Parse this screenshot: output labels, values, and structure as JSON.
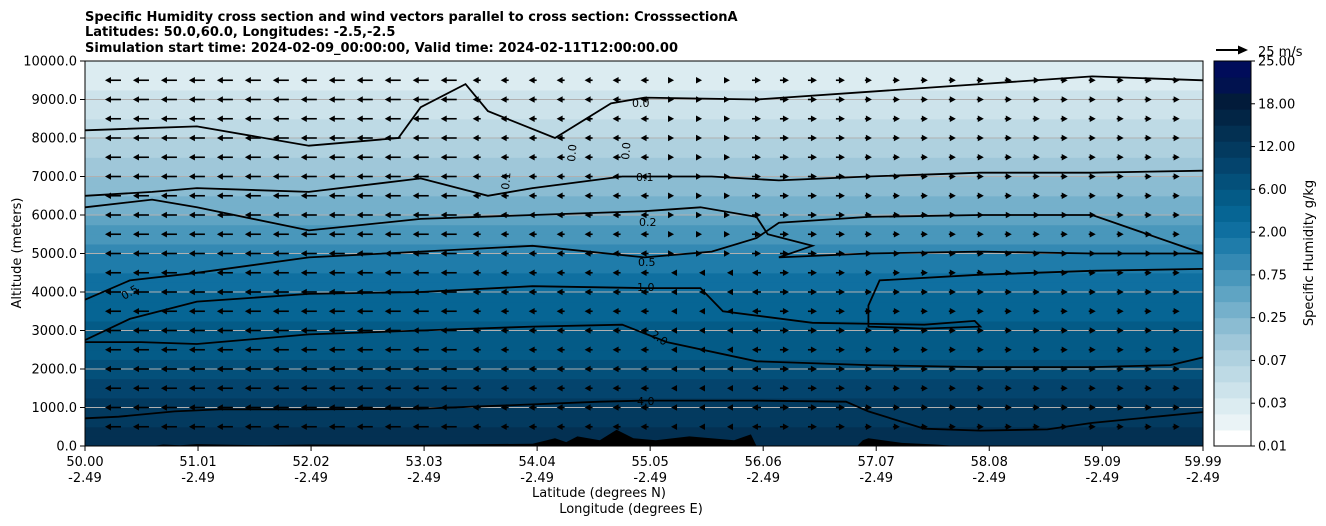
{
  "chart_data": {
    "type": "contourf",
    "title_lines": [
      "Specific Humidity cross section and wind vectors parallel to cross section: CrosssectionA",
      "Latitudes: 50.0,60.0, Longitudes: -2.5,-2.5",
      "Simulation start time: 2024-02-09_00:00:00, Valid time: 2024-02-11T12:00:00.00"
    ],
    "ylabel": "Altitude (meters)",
    "xlabel_lat": "Latitude (degrees N)",
    "xlabel_lon": "Longitude (degrees E)",
    "ylim": [
      0,
      10000
    ],
    "yticks": [
      "0.0",
      "1000.0",
      "2000.0",
      "3000.0",
      "4000.0",
      "5000.0",
      "6000.0",
      "7000.0",
      "8000.0",
      "9000.0",
      "10000.0"
    ],
    "xticks_lat": [
      "50.00",
      "51.01",
      "52.02",
      "53.03",
      "54.04",
      "55.05",
      "56.06",
      "57.07",
      "58.08",
      "59.09",
      "59.99"
    ],
    "xticks_lon": [
      "-2.49",
      "-2.49",
      "-2.49",
      "-2.49",
      "-2.49",
      "-2.49",
      "-2.49",
      "-2.49",
      "-2.49",
      "-2.49",
      "-2.49"
    ],
    "colorbar_label": "Specific Humidity g/kg",
    "colorbar_ticks": [
      "0.01",
      "0.03",
      "0.07",
      "0.25",
      "0.75",
      "2.00",
      "6.00",
      "12.00",
      "18.00",
      "25.00"
    ],
    "colorbar_colors": [
      "#ffffff",
      "#eaf3f6",
      "#dcecf1",
      "#cde3eb",
      "#bedae5",
      "#afd1df",
      "#9fc7d9",
      "#8bbcd2",
      "#75b0cb",
      "#5fa4c3",
      "#4997bb",
      "#3489b3",
      "#1f7caa",
      "#0f6fa0",
      "#066594",
      "#045b87",
      "#04507a",
      "#04446d",
      "#033a5f",
      "#033052",
      "#022545",
      "#021b3a",
      "#01124f",
      "#010c5a"
    ],
    "humidity_by_altitude": [
      {
        "alt": 0,
        "value": 6.0
      },
      {
        "alt": 1000,
        "value": 4.0
      },
      {
        "alt": 2000,
        "value": 2.0
      },
      {
        "alt": 3000,
        "value": 1.5
      },
      {
        "alt": 4000,
        "value": 1.0
      },
      {
        "alt": 5000,
        "value": 0.5
      },
      {
        "alt": 6000,
        "value": 0.2
      },
      {
        "alt": 7000,
        "value": 0.1
      },
      {
        "alt": 8000,
        "value": 0.05
      },
      {
        "alt": 9000,
        "value": 0.03
      },
      {
        "alt": 10000,
        "value": 0.02
      }
    ],
    "contour_labels": [
      "0.0",
      "0.0",
      "0.0",
      "0.1",
      "0.2",
      "0.5",
      "1.0",
      "2.0",
      "4.0",
      "0.5",
      "0.1"
    ],
    "contours": [
      {
        "level": "4.0",
        "points": [
          [
            0,
            720
          ],
          [
            0.3,
            760
          ],
          [
            0.8,
            900
          ],
          [
            1.2,
            950
          ],
          [
            2,
            950
          ],
          [
            3,
            970
          ],
          [
            4,
            1080
          ],
          [
            4.6,
            1150
          ],
          [
            5,
            1180
          ],
          [
            6,
            1180
          ],
          [
            6.8,
            1150
          ],
          [
            7,
            900
          ],
          [
            7.5,
            450
          ],
          [
            8,
            400
          ],
          [
            8.6,
            430
          ],
          [
            9,
            600
          ],
          [
            9.99,
            880
          ]
        ]
      },
      {
        "level": "2.0",
        "points": [
          [
            0,
            2700
          ],
          [
            0.5,
            2700
          ],
          [
            1,
            2650
          ],
          [
            2,
            2900
          ],
          [
            3,
            3000
          ],
          [
            4,
            3100
          ],
          [
            4.8,
            3150
          ],
          [
            5.2,
            2700
          ],
          [
            6,
            2200
          ],
          [
            7,
            2100
          ],
          [
            8,
            2050
          ],
          [
            9,
            2050
          ],
          [
            9.7,
            2100
          ],
          [
            9.99,
            2300
          ]
        ]
      },
      {
        "level": "1.0",
        "points": [
          [
            0,
            2750
          ],
          [
            0.4,
            3300
          ],
          [
            1,
            3750
          ],
          [
            2,
            3950
          ],
          [
            3,
            4000
          ],
          [
            4,
            4150
          ],
          [
            5,
            4100
          ],
          [
            5.5,
            4100
          ],
          [
            5.7,
            3500
          ],
          [
            6.5,
            3200
          ],
          [
            7.5,
            3150
          ],
          [
            7.95,
            3250
          ],
          [
            8,
            3100
          ],
          [
            7.5,
            3050
          ],
          [
            7,
            3100
          ],
          [
            7,
            3650
          ],
          [
            7.1,
            4300
          ],
          [
            8,
            4450
          ],
          [
            9,
            4550
          ],
          [
            9.99,
            4600
          ]
        ]
      },
      {
        "level": "0.5",
        "points": [
          [
            0,
            3800
          ],
          [
            0.4,
            4300
          ],
          [
            1,
            4500
          ],
          [
            2,
            4900
          ],
          [
            3,
            5050
          ],
          [
            4,
            5200
          ],
          [
            5,
            4900
          ],
          [
            5.6,
            5050
          ],
          [
            6,
            5400
          ],
          [
            6.2,
            5800
          ],
          [
            7,
            5950
          ],
          [
            8,
            6000
          ],
          [
            9,
            6000
          ],
          [
            9.99,
            5000
          ]
        ]
      },
      {
        "level": "0.2",
        "points": [
          [
            0,
            6200
          ],
          [
            0.6,
            6400
          ],
          [
            1,
            6200
          ],
          [
            2,
            5600
          ],
          [
            3,
            5900
          ],
          [
            4,
            6000
          ],
          [
            5,
            6100
          ],
          [
            5.5,
            6200
          ],
          [
            6,
            5950
          ],
          [
            6.1,
            5500
          ],
          [
            6.5,
            5200
          ],
          [
            6.2,
            4900
          ],
          [
            7,
            5000
          ],
          [
            8,
            5050
          ],
          [
            9,
            5000
          ],
          [
            9.99,
            5000
          ]
        ]
      },
      {
        "level": "0.1",
        "points": [
          [
            0,
            6500
          ],
          [
            0.6,
            6600
          ],
          [
            1,
            6700
          ],
          [
            2,
            6600
          ],
          [
            3,
            6950
          ],
          [
            3.6,
            6500
          ],
          [
            4,
            6700
          ],
          [
            4.8,
            7000
          ],
          [
            5.6,
            7000
          ],
          [
            6.2,
            6900
          ],
          [
            7,
            7000
          ],
          [
            8,
            7100
          ],
          [
            9,
            7100
          ],
          [
            9.99,
            7150
          ]
        ]
      },
      {
        "level": "0.0",
        "points": [
          [
            0,
            8200
          ],
          [
            1,
            8300
          ],
          [
            2,
            7800
          ],
          [
            2.8,
            8000
          ],
          [
            3,
            8800
          ],
          [
            3.4,
            9400
          ],
          [
            3.6,
            8700
          ],
          [
            4.2,
            8000
          ],
          [
            4.7,
            8900
          ],
          [
            5,
            9050
          ],
          [
            6,
            9000
          ],
          [
            7,
            9200
          ],
          [
            8,
            9400
          ],
          [
            9,
            9600
          ],
          [
            9.99,
            9500
          ]
        ]
      }
    ]
  }
}
